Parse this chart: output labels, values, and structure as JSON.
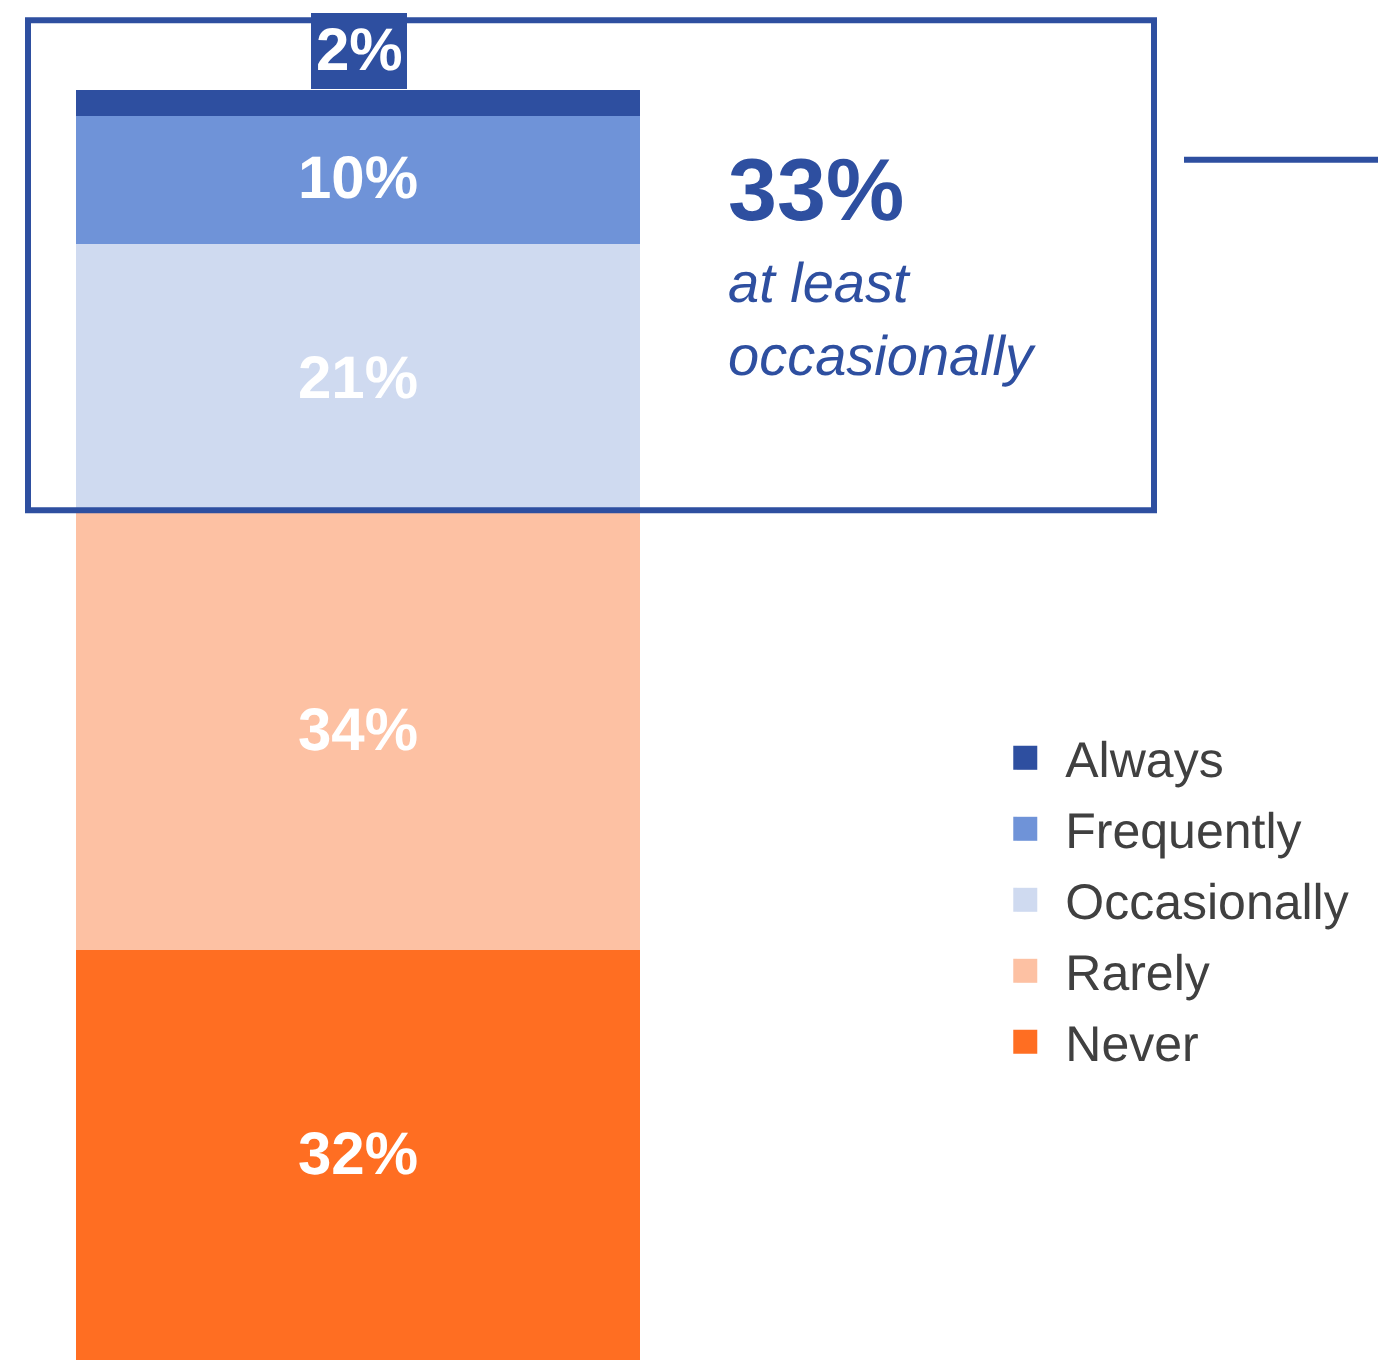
{
  "chart_data": {
    "type": "bar",
    "stacked": true,
    "categories": [
      null
    ],
    "series": [
      {
        "name": "Never",
        "color": "#ff6e22",
        "values": [
          32
        ],
        "value_labels": [
          "32%"
        ]
      },
      {
        "name": "Rarely",
        "color": "#fdc1a3",
        "values": [
          34
        ],
        "value_labels": [
          "34%"
        ]
      },
      {
        "name": "Occasionally",
        "color": "#cfdaf0",
        "values": [
          21
        ],
        "value_labels": [
          "21%"
        ]
      },
      {
        "name": "Frequently",
        "color": "#6f93d8",
        "values": [
          10
        ],
        "value_labels": [
          "10%"
        ]
      },
      {
        "name": "Always",
        "color": "#2e4fa0",
        "values": [
          2
        ],
        "value_labels": [
          "2%"
        ]
      }
    ],
    "annotations": [
      "33%",
      "at least\noccasionally"
    ],
    "legend": "bottom right"
  }
}
